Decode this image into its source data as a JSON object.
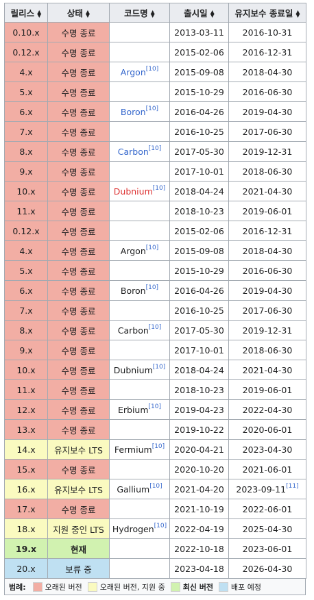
{
  "headers": [
    "릴리스",
    "상태",
    "코드명",
    "출시일",
    "유지보수 종료일"
  ],
  "colors": {
    "end_of_life": "#f2aea4",
    "maintenance": "#fafac0",
    "current": "#d1f2b0",
    "planned": "#bfe0f2"
  },
  "sort_icon": "sort-arrows-icon",
  "rows": [
    {
      "release": "0.10.x",
      "status": "수명 종료",
      "codename": "",
      "ref": "",
      "released": "2013-03-11",
      "eol": "2016-10-31",
      "eol_ref": "",
      "cls": "c-old",
      "cn_cls": "",
      "bold": false
    },
    {
      "release": "0.12.x",
      "status": "수명 종료",
      "codename": "",
      "ref": "",
      "released": "2015-02-06",
      "eol": "2016-12-31",
      "eol_ref": "",
      "cls": "c-old",
      "cn_cls": "",
      "bold": false
    },
    {
      "release": "4.x",
      "status": "수명 종료",
      "codename": "Argon",
      "ref": "[10]",
      "released": "2015-09-08",
      "eol": "2018-04-30",
      "eol_ref": "",
      "cls": "c-old",
      "cn_cls": "blue",
      "bold": false
    },
    {
      "release": "5.x",
      "status": "수명 종료",
      "codename": "",
      "ref": "",
      "released": "2015-10-29",
      "eol": "2016-06-30",
      "eol_ref": "",
      "cls": "c-old",
      "cn_cls": "",
      "bold": false
    },
    {
      "release": "6.x",
      "status": "수명 종료",
      "codename": "Boron",
      "ref": "[10]",
      "released": "2016-04-26",
      "eol": "2019-04-30",
      "eol_ref": "",
      "cls": "c-old",
      "cn_cls": "blue",
      "bold": false
    },
    {
      "release": "7.x",
      "status": "수명 종료",
      "codename": "",
      "ref": "",
      "released": "2016-10-25",
      "eol": "2017-06-30",
      "eol_ref": "",
      "cls": "c-old",
      "cn_cls": "",
      "bold": false
    },
    {
      "release": "8.x",
      "status": "수명 종료",
      "codename": "Carbon",
      "ref": "[10]",
      "released": "2017-05-30",
      "eol": "2019-12-31",
      "eol_ref": "",
      "cls": "c-old",
      "cn_cls": "blue",
      "bold": false
    },
    {
      "release": "9.x",
      "status": "수명 종료",
      "codename": "",
      "ref": "",
      "released": "2017-10-01",
      "eol": "2018-06-30",
      "eol_ref": "",
      "cls": "c-old",
      "cn_cls": "",
      "bold": false
    },
    {
      "release": "10.x",
      "status": "수명 종료",
      "codename": "Dubnium",
      "ref": "[10]",
      "released": "2018-04-24",
      "eol": "2021-04-30",
      "eol_ref": "",
      "cls": "c-old",
      "cn_cls": "red",
      "bold": false
    },
    {
      "release": "11.x",
      "status": "수명 종료",
      "codename": "",
      "ref": "",
      "released": "2018-10-23",
      "eol": "2019-06-01",
      "eol_ref": "",
      "cls": "c-old",
      "cn_cls": "",
      "bold": false
    },
    {
      "release": "0.12.x",
      "status": "수명 종료",
      "codename": "",
      "ref": "",
      "released": "2015-02-06",
      "eol": "2016-12-31",
      "eol_ref": "",
      "cls": "c-old",
      "cn_cls": "",
      "bold": false
    },
    {
      "release": "4.x",
      "status": "수명 종료",
      "codename": "Argon",
      "ref": "[10]",
      "released": "2015-09-08",
      "eol": "2018-04-30",
      "eol_ref": "",
      "cls": "c-old",
      "cn_cls": "",
      "bold": false
    },
    {
      "release": "5.x",
      "status": "수명 종료",
      "codename": "",
      "ref": "",
      "released": "2015-10-29",
      "eol": "2016-06-30",
      "eol_ref": "",
      "cls": "c-old",
      "cn_cls": "",
      "bold": false
    },
    {
      "release": "6.x",
      "status": "수명 종료",
      "codename": "Boron",
      "ref": "[10]",
      "released": "2016-04-26",
      "eol": "2019-04-30",
      "eol_ref": "",
      "cls": "c-old",
      "cn_cls": "",
      "bold": false
    },
    {
      "release": "7.x",
      "status": "수명 종료",
      "codename": "",
      "ref": "",
      "released": "2016-10-25",
      "eol": "2017-06-30",
      "eol_ref": "",
      "cls": "c-old",
      "cn_cls": "",
      "bold": false
    },
    {
      "release": "8.x",
      "status": "수명 종료",
      "codename": "Carbon",
      "ref": "[10]",
      "released": "2017-05-30",
      "eol": "2019-12-31",
      "eol_ref": "",
      "cls": "c-old",
      "cn_cls": "",
      "bold": false
    },
    {
      "release": "9.x",
      "status": "수명 종료",
      "codename": "",
      "ref": "",
      "released": "2017-10-01",
      "eol": "2018-06-30",
      "eol_ref": "",
      "cls": "c-old",
      "cn_cls": "",
      "bold": false
    },
    {
      "release": "10.x",
      "status": "수명 종료",
      "codename": "Dubnium",
      "ref": "[10]",
      "released": "2018-04-24",
      "eol": "2021-04-30",
      "eol_ref": "",
      "cls": "c-old",
      "cn_cls": "",
      "bold": false
    },
    {
      "release": "11.x",
      "status": "수명 종료",
      "codename": "",
      "ref": "",
      "released": "2018-10-23",
      "eol": "2019-06-01",
      "eol_ref": "",
      "cls": "c-old",
      "cn_cls": "",
      "bold": false
    },
    {
      "release": "12.x",
      "status": "수명 종료",
      "codename": "Erbium",
      "ref": "[10]",
      "released": "2019-04-23",
      "eol": "2022-04-30",
      "eol_ref": "",
      "cls": "c-old",
      "cn_cls": "",
      "bold": false
    },
    {
      "release": "13.x",
      "status": "수명 종료",
      "codename": "",
      "ref": "",
      "released": "2019-10-22",
      "eol": "2020-06-01",
      "eol_ref": "",
      "cls": "c-old",
      "cn_cls": "",
      "bold": false
    },
    {
      "release": "14.x",
      "status": "유지보수 LTS",
      "codename": "Fermium",
      "ref": "[10]",
      "released": "2020-04-21",
      "eol": "2023-04-30",
      "eol_ref": "",
      "cls": "c-lts",
      "cn_cls": "",
      "bold": false
    },
    {
      "release": "15.x",
      "status": "수명 종료",
      "codename": "",
      "ref": "",
      "released": "2020-10-20",
      "eol": "2021-06-01",
      "eol_ref": "",
      "cls": "c-old",
      "cn_cls": "",
      "bold": false
    },
    {
      "release": "16.x",
      "status": "유지보수 LTS",
      "codename": "Gallium",
      "ref": "[10]",
      "released": "2021-04-20",
      "eol": "2023-09-11",
      "eol_ref": "[11]",
      "cls": "c-lts",
      "cn_cls": "",
      "bold": false
    },
    {
      "release": "17.x",
      "status": "수명 종료",
      "codename": "",
      "ref": "",
      "released": "2021-10-19",
      "eol": "2022-06-01",
      "eol_ref": "",
      "cls": "c-old",
      "cn_cls": "",
      "bold": false
    },
    {
      "release": "18.x",
      "status": "지원 중인 LTS",
      "codename": "Hydrogen",
      "ref": "[10]",
      "released": "2022-04-19",
      "eol": "2025-04-30",
      "eol_ref": "",
      "cls": "c-lts",
      "cn_cls": "",
      "bold": false
    },
    {
      "release": "19.x",
      "status": "현재",
      "codename": "",
      "ref": "",
      "released": "2022-10-18",
      "eol": "2023-06-01",
      "eol_ref": "",
      "cls": "c-cur",
      "cn_cls": "",
      "bold": true
    },
    {
      "release": "20.x",
      "status": "보류 중",
      "codename": "",
      "ref": "",
      "released": "2023-04-18",
      "eol": "2026-04-30",
      "eol_ref": "",
      "cls": "c-fut",
      "cn_cls": "",
      "bold": false
    }
  ],
  "legend": {
    "label": "범례:",
    "items": [
      {
        "text": "오래된 버전",
        "color": "#f2aea4",
        "bold": false
      },
      {
        "text": "오래된 버전, 지원 중",
        "color": "#fafac0",
        "bold": false
      },
      {
        "text": "최신 버전",
        "color": "#d1f2b0",
        "bold": true
      },
      {
        "text": "배포 예정",
        "color": "#bfe0f2",
        "bold": false
      }
    ]
  }
}
